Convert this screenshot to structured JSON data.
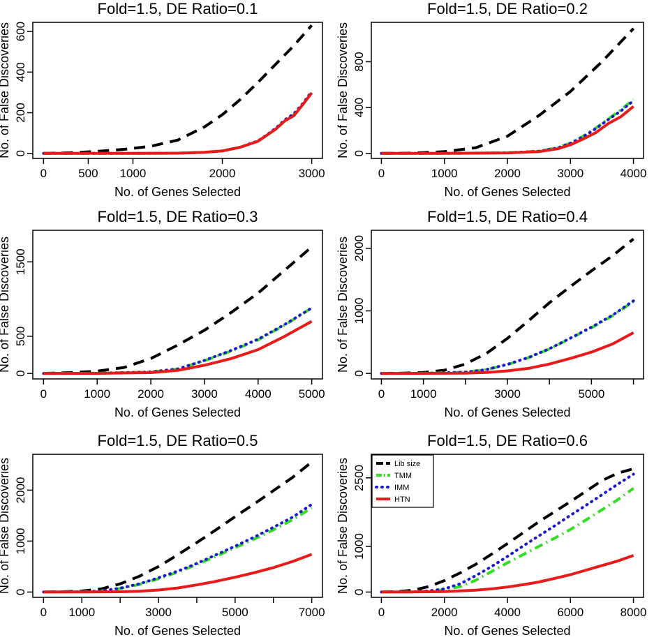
{
  "chart_data": [
    {
      "type": "line",
      "title": "Fold=1.5, DE Ratio=0.1",
      "xlabel": "No. of Genes Selected",
      "ylabel": "No. of False Discoveries",
      "xlim": [
        0,
        3000
      ],
      "ylim": [
        0,
        620
      ],
      "xticks": [
        0,
        500,
        1000,
        2000,
        3000
      ],
      "xtick_labels": [
        "0",
        "500",
        "1000",
        "2000",
        "3000"
      ],
      "yticks": [
        0,
        200,
        400,
        600
      ],
      "ytick_labels": [
        "0",
        "200",
        "400",
        "600"
      ],
      "series": [
        {
          "key": "libsize",
          "x": [
            0,
            300,
            600,
            900,
            1200,
            1500,
            1800,
            2000,
            2200,
            2400,
            2600,
            2800,
            3000
          ],
          "y": [
            0,
            3,
            10,
            20,
            35,
            65,
            130,
            190,
            265,
            350,
            440,
            530,
            630
          ]
        },
        {
          "key": "tmm",
          "x": [
            0,
            500,
            1000,
            1500,
            1800,
            2000,
            2200,
            2400,
            2500,
            2600,
            2700,
            2800,
            2900,
            3000
          ],
          "y": [
            0,
            0,
            0,
            1,
            5,
            12,
            30,
            60,
            90,
            120,
            160,
            190,
            240,
            300
          ]
        },
        {
          "key": "imm",
          "x": [
            0,
            500,
            1000,
            1500,
            1800,
            2000,
            2200,
            2400,
            2500,
            2600,
            2700,
            2800,
            2900,
            3000
          ],
          "y": [
            0,
            0,
            0,
            1,
            5,
            12,
            30,
            62,
            92,
            125,
            165,
            195,
            245,
            305
          ]
        },
        {
          "key": "htn",
          "x": [
            0,
            500,
            1000,
            1500,
            1800,
            2000,
            2200,
            2400,
            2500,
            2600,
            2700,
            2800,
            2900,
            3000
          ],
          "y": [
            0,
            0,
            0,
            1,
            5,
            12,
            30,
            60,
            90,
            120,
            160,
            185,
            240,
            298
          ]
        }
      ]
    },
    {
      "type": "line",
      "title": "Fold=1.5, DE Ratio=0.2",
      "xlabel": "No. of Genes Selected",
      "ylabel": "No. of False Discoveries",
      "xlim": [
        0,
        4000
      ],
      "ylim": [
        0,
        1100
      ],
      "xticks": [
        0,
        1000,
        2000,
        3000,
        4000
      ],
      "xtick_labels": [
        "0",
        "1000",
        "2000",
        "3000",
        "4000"
      ],
      "yticks": [
        0,
        400,
        800
      ],
      "ytick_labels": [
        "0",
        "400",
        "800"
      ],
      "series": [
        {
          "key": "libsize",
          "x": [
            0,
            500,
            1000,
            1500,
            2000,
            2500,
            3000,
            3500,
            4000
          ],
          "y": [
            0,
            3,
            15,
            50,
            150,
            330,
            540,
            800,
            1090
          ]
        },
        {
          "key": "tmm",
          "x": [
            0,
            1000,
            2000,
            2500,
            2800,
            3000,
            3200,
            3400,
            3600,
            3800,
            4000
          ],
          "y": [
            0,
            0,
            5,
            20,
            50,
            90,
            150,
            220,
            300,
            380,
            470
          ]
        },
        {
          "key": "imm",
          "x": [
            0,
            1000,
            2000,
            2500,
            2800,
            3000,
            3200,
            3400,
            3600,
            3800,
            4000
          ],
          "y": [
            0,
            0,
            5,
            18,
            48,
            88,
            145,
            215,
            295,
            370,
            460
          ]
        },
        {
          "key": "htn",
          "x": [
            0,
            1000,
            2000,
            2500,
            2800,
            3000,
            3200,
            3400,
            3600,
            3800,
            4000
          ],
          "y": [
            0,
            0,
            4,
            15,
            40,
            75,
            125,
            180,
            260,
            320,
            410
          ]
        }
      ]
    },
    {
      "type": "line",
      "title": "Fold=1.5, DE Ratio=0.3",
      "xlabel": "No. of Genes Selected",
      "ylabel": "No. of False Discoveries",
      "xlim": [
        0,
        5000
      ],
      "ylim": [
        0,
        1850
      ],
      "xticks": [
        0,
        1000,
        2000,
        3000,
        4000,
        5000
      ],
      "xtick_labels": [
        "0",
        "1000",
        "2000",
        "3000",
        "4000",
        "5000"
      ],
      "yticks": [
        0,
        500,
        1500
      ],
      "ytick_labels": [
        "0",
        "500",
        "1500"
      ],
      "series": [
        {
          "key": "libsize",
          "x": [
            0,
            500,
            1000,
            1500,
            2000,
            2500,
            3000,
            3500,
            4000,
            4500,
            5000
          ],
          "y": [
            0,
            10,
            30,
            80,
            200,
            380,
            580,
            820,
            1080,
            1390,
            1700
          ]
        },
        {
          "key": "tmm",
          "x": [
            0,
            1000,
            2000,
            2500,
            3000,
            3500,
            4000,
            4500,
            5000
          ],
          "y": [
            0,
            2,
            20,
            60,
            170,
            300,
            450,
            650,
            880
          ]
        },
        {
          "key": "imm",
          "x": [
            0,
            1000,
            2000,
            2500,
            3000,
            3500,
            4000,
            4500,
            5000
          ],
          "y": [
            0,
            2,
            20,
            60,
            175,
            310,
            460,
            660,
            880
          ]
        },
        {
          "key": "htn",
          "x": [
            0,
            1000,
            2000,
            2500,
            3000,
            3500,
            4000,
            4500,
            5000
          ],
          "y": [
            0,
            1,
            10,
            40,
            110,
            200,
            320,
            500,
            700
          ]
        }
      ]
    },
    {
      "type": "line",
      "title": "Fold=1.5, DE Ratio=0.4",
      "xlabel": "No. of Genes Selected",
      "ylabel": "No. of False Discoveries",
      "xlim": [
        0,
        6000
      ],
      "ylim": [
        0,
        2200
      ],
      "xticks": [
        0,
        1000,
        2000,
        3000,
        4000,
        5000,
        6000
      ],
      "xtick_labels": [
        "0",
        "1000",
        "",
        "3000",
        "",
        "5000",
        ""
      ],
      "yticks": [
        0,
        1000,
        2000
      ],
      "ytick_labels": [
        "0",
        "1000",
        "2000"
      ],
      "series": [
        {
          "key": "libsize",
          "x": [
            0,
            500,
            1000,
            1500,
            2000,
            2500,
            3000,
            3500,
            4000,
            4500,
            5000,
            5500,
            6000
          ],
          "y": [
            0,
            5,
            15,
            50,
            150,
            320,
            560,
            840,
            1130,
            1390,
            1640,
            1880,
            2150
          ]
        },
        {
          "key": "tmm",
          "x": [
            0,
            1000,
            2000,
            2500,
            3000,
            3500,
            4000,
            4500,
            5000,
            5500,
            6000
          ],
          "y": [
            0,
            2,
            20,
            60,
            140,
            250,
            390,
            560,
            730,
            920,
            1150
          ]
        },
        {
          "key": "imm",
          "x": [
            0,
            1000,
            2000,
            2500,
            3000,
            3500,
            4000,
            4500,
            5000,
            5500,
            6000
          ],
          "y": [
            0,
            2,
            20,
            62,
            145,
            255,
            395,
            565,
            740,
            930,
            1160
          ]
        },
        {
          "key": "htn",
          "x": [
            0,
            1000,
            2000,
            2500,
            3000,
            3500,
            4000,
            4500,
            5000,
            5500,
            6000
          ],
          "y": [
            0,
            1,
            5,
            15,
            40,
            80,
            150,
            240,
            340,
            470,
            650
          ]
        }
      ]
    },
    {
      "type": "line",
      "title": "Fold=1.5, DE Ratio=0.5",
      "xlabel": "No. of Genes Selected",
      "ylabel": "No. of False Discoveries",
      "xlim": [
        0,
        7000
      ],
      "ylim": [
        0,
        2600
      ],
      "xticks": [
        0,
        1000,
        2000,
        3000,
        4000,
        5000,
        6000,
        7000
      ],
      "xtick_labels": [
        "0",
        "1000",
        "",
        "3000",
        "",
        "5000",
        "",
        "7000"
      ],
      "yticks": [
        0,
        1000,
        2000
      ],
      "ytick_labels": [
        "0",
        "1000",
        "2000"
      ],
      "series": [
        {
          "key": "libsize",
          "x": [
            0,
            500,
            1000,
            1500,
            2000,
            2500,
            3000,
            3500,
            4000,
            4500,
            5000,
            5500,
            6000,
            6500,
            7000
          ],
          "y": [
            0,
            5,
            20,
            60,
            160,
            310,
            500,
            730,
            970,
            1220,
            1480,
            1730,
            1990,
            2250,
            2550
          ]
        },
        {
          "key": "tmm",
          "x": [
            0,
            1000,
            1500,
            2000,
            2500,
            3000,
            3500,
            4000,
            4500,
            5000,
            5500,
            6000,
            6500,
            7000
          ],
          "y": [
            0,
            5,
            20,
            70,
            150,
            260,
            390,
            540,
            700,
            870,
            1040,
            1220,
            1420,
            1650
          ]
        },
        {
          "key": "imm",
          "x": [
            0,
            1000,
            1500,
            2000,
            2500,
            3000,
            3500,
            4000,
            4500,
            5000,
            5500,
            6000,
            6500,
            7000
          ],
          "y": [
            0,
            5,
            22,
            75,
            160,
            280,
            410,
            560,
            730,
            900,
            1080,
            1270,
            1470,
            1720
          ]
        },
        {
          "key": "htn",
          "x": [
            0,
            1000,
            2000,
            2500,
            3000,
            3500,
            4000,
            4500,
            5000,
            5500,
            6000,
            6500,
            7000
          ],
          "y": [
            0,
            1,
            5,
            15,
            40,
            80,
            140,
            210,
            290,
            380,
            480,
            600,
            740
          ]
        }
      ]
    },
    {
      "type": "line",
      "title": "Fold=1.5, DE Ratio=0.6",
      "xlabel": "No. of Genes Selected",
      "ylabel": "No. of False Discoveries",
      "xlim": [
        0,
        8000
      ],
      "ylim": [
        0,
        2900
      ],
      "xticks": [
        0,
        2000,
        4000,
        6000,
        8000
      ],
      "xtick_labels": [
        "0",
        "2000",
        "4000",
        "6000",
        "8000"
      ],
      "yticks": [
        0,
        1000,
        2500
      ],
      "ytick_labels": [
        "0",
        "1000",
        "2500"
      ],
      "legend": {
        "position": "top-left"
      },
      "series": [
        {
          "key": "libsize",
          "x": [
            0,
            500,
            1000,
            1500,
            2000,
            2500,
            3000,
            3500,
            4000,
            4500,
            5000,
            5500,
            6000,
            6500,
            7000,
            7500,
            8000
          ],
          "y": [
            0,
            10,
            40,
            120,
            250,
            420,
            610,
            830,
            1060,
            1300,
            1540,
            1760,
            1980,
            2210,
            2440,
            2600,
            2700
          ]
        },
        {
          "key": "tmm",
          "x": [
            0,
            1000,
            1500,
            2000,
            2500,
            3000,
            3500,
            4000,
            4500,
            5000,
            5500,
            6000,
            6500,
            7000,
            7500,
            8000
          ],
          "y": [
            0,
            5,
            20,
            50,
            120,
            260,
            450,
            640,
            820,
            1000,
            1180,
            1370,
            1580,
            1800,
            2020,
            2270
          ]
        },
        {
          "key": "imm",
          "x": [
            0,
            1000,
            1500,
            2000,
            2500,
            3000,
            3500,
            4000,
            4500,
            5000,
            5500,
            6000,
            6500,
            7000,
            7500,
            8000
          ],
          "y": [
            0,
            5,
            25,
            70,
            180,
            360,
            560,
            780,
            1010,
            1230,
            1450,
            1680,
            1900,
            2130,
            2360,
            2580
          ]
        },
        {
          "key": "htn",
          "x": [
            0,
            1000,
            2000,
            3000,
            3500,
            4000,
            4500,
            5000,
            5500,
            6000,
            6500,
            7000,
            7500,
            8000
          ],
          "y": [
            0,
            2,
            10,
            40,
            70,
            110,
            160,
            220,
            300,
            380,
            480,
            580,
            680,
            800
          ]
        }
      ]
    }
  ],
  "legend_labels": {
    "libsize": "Lib size",
    "tmm": "TMM",
    "imm": "IMM",
    "htn": "HTN"
  },
  "series_colors": {
    "libsize": "#000000",
    "tmm": "#33dd22",
    "imm": "#1a1acc",
    "htn": "#e81a1a"
  }
}
